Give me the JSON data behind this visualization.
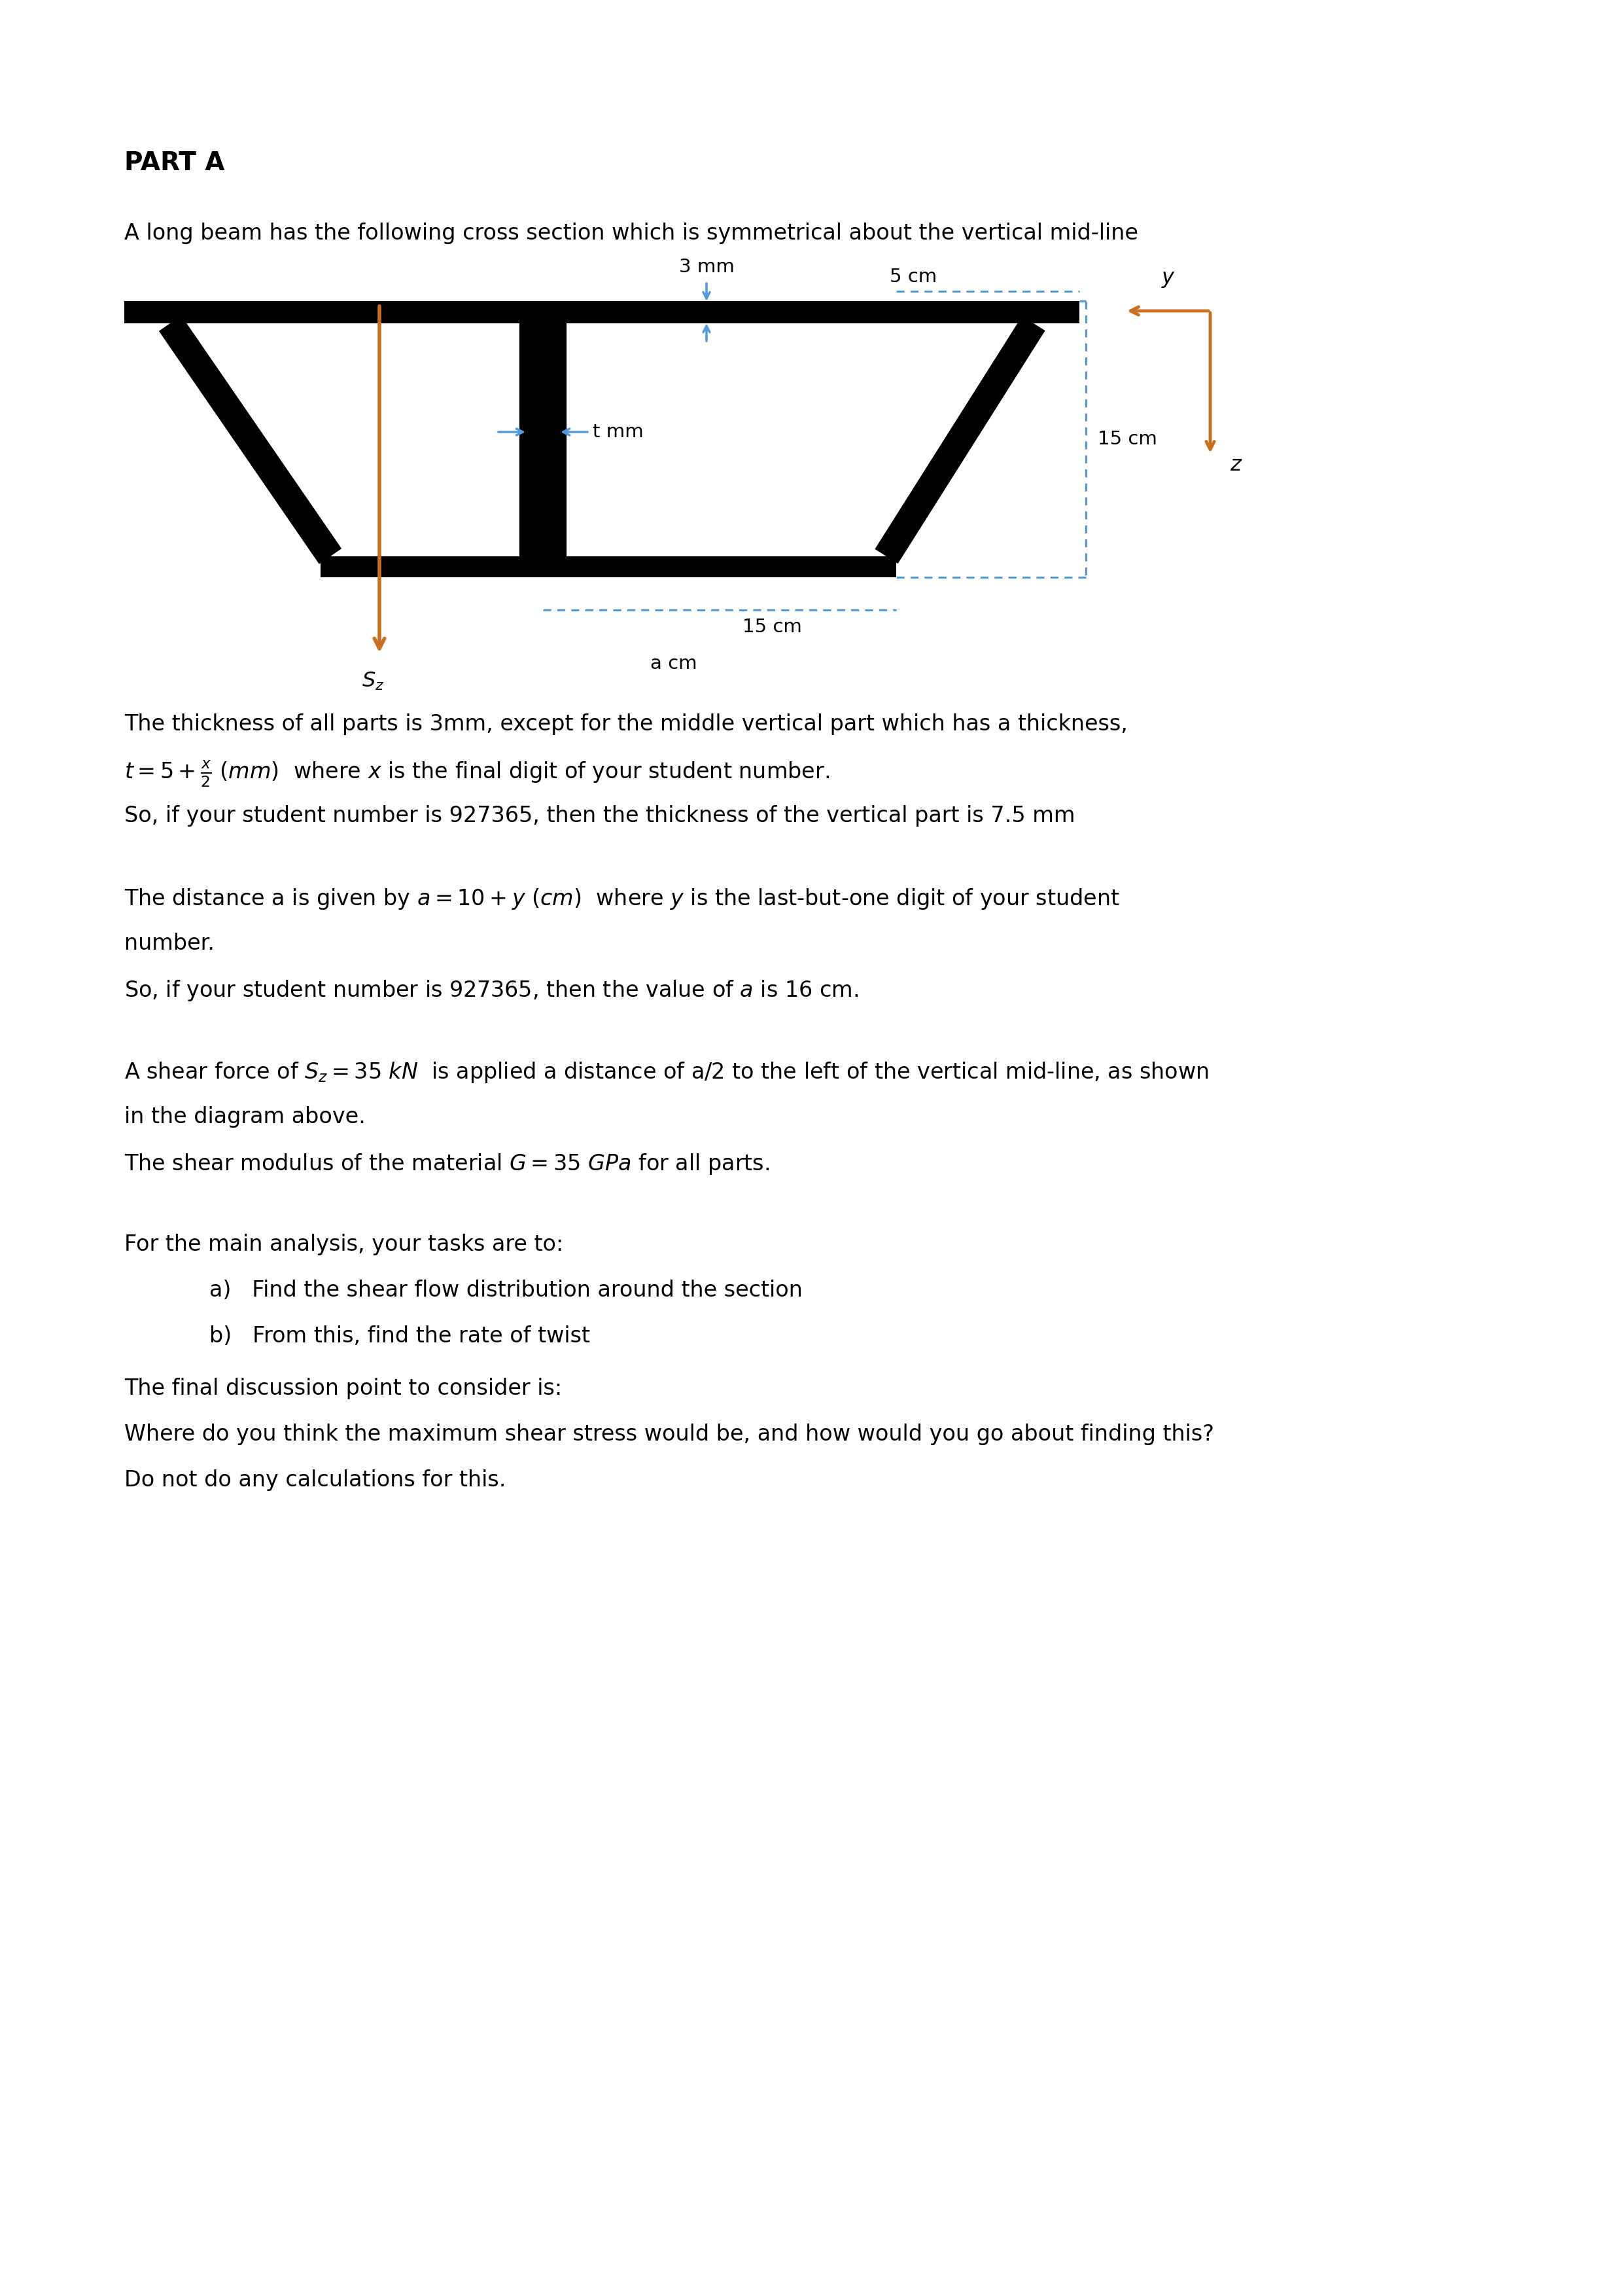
{
  "title": "PART A",
  "intro_text": "A long beam has the following cross section which is symmetrical about the vertical mid-line",
  "background_color": "#ffffff",
  "orange_color": "#c87020",
  "blue_color": "#5599dd",
  "black": "#000000",
  "paragraph1": "The thickness of all parts is 3mm, except for the middle vertical part which has a thickness,",
  "formula1": "$t = 5 + \\frac{x}{2}$ $(mm)$  where $x$ is the final digit of your student number.",
  "paragraph2": "So, if your student number is 927365, then the thickness of the vertical part is 7.5 mm",
  "p3_line1": "The distance a is given by $a = 10 + y$ $(cm)$  where $y$ is the last-but-one digit of your student",
  "p3_line2": "number.",
  "paragraph4": "So, if your student number is 927365, then the value of $a$ is 16 cm.",
  "paragraph5a": "A shear force of $S_z = 35$ $kN$  is applied a distance of a/2 to the left of the vertical mid-line, as shown",
  "paragraph5b": "in the diagram above.",
  "paragraph6": "The shear modulus of the material $G = 35$ $GPa$ for all parts.",
  "paragraph7": "For the main analysis, your tasks are to:",
  "task_a": "Find the shear flow distribution around the section",
  "task_b": "From this, find the rate of twist",
  "discussion_intro": "The final discussion point to consider is:",
  "discussion_text1": "Where do you think the maximum shear stress would be, and how would you go about finding this?",
  "discussion_text2": "Do not do any calculations for this.",
  "label_3mm": "3 mm",
  "label_5cm": "5 cm",
  "label_tmm": "t mm",
  "label_15cm_v": "15 cm",
  "label_15cm_h": "15 cm",
  "label_acm": "a cm",
  "label_y": "y",
  "label_z": "z"
}
